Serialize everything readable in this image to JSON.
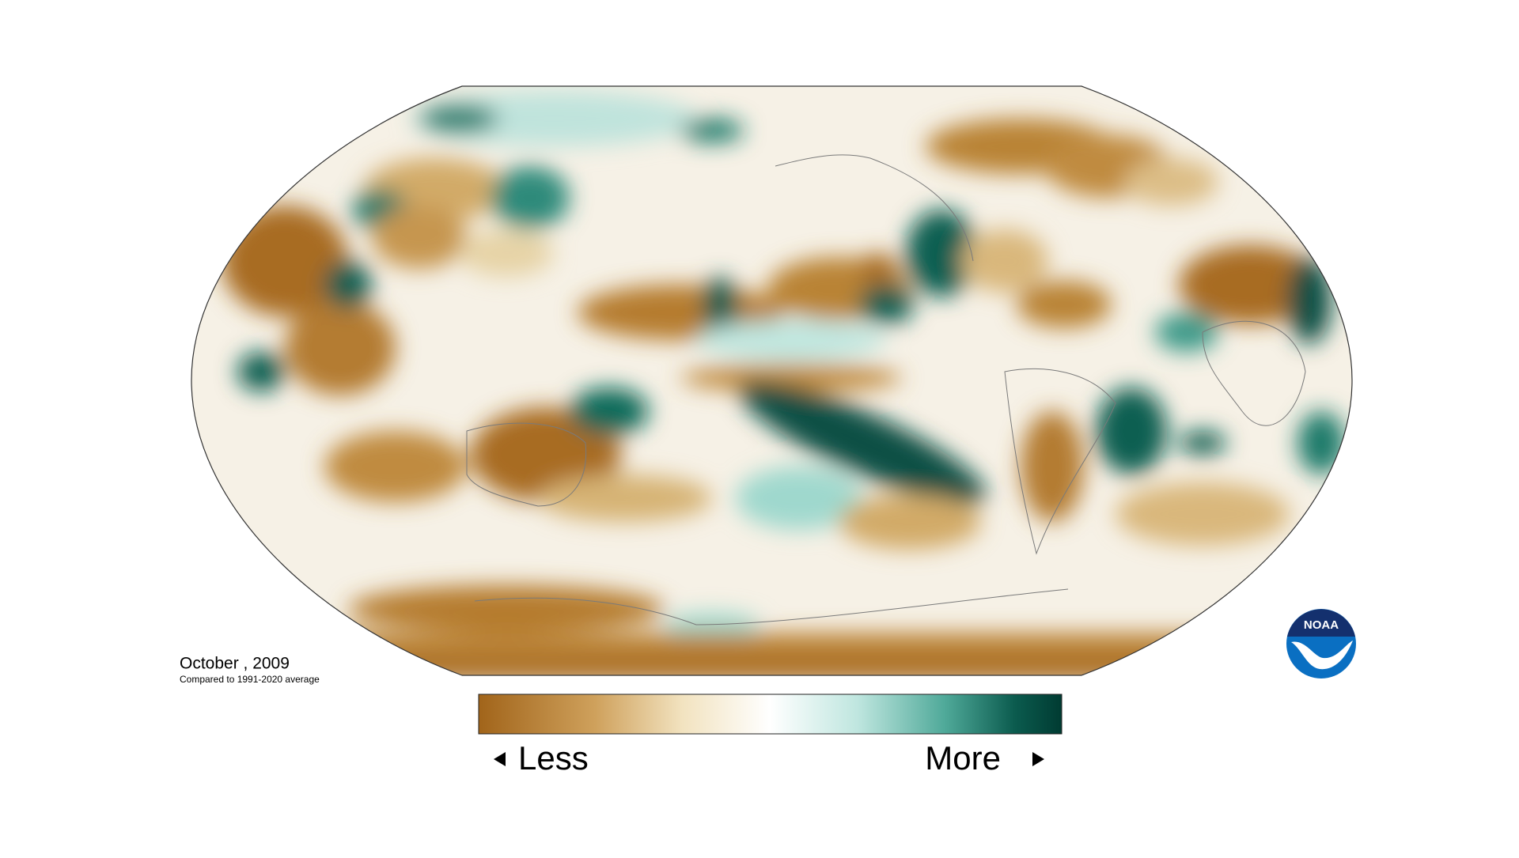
{
  "title": "October , 2009",
  "subtitle": "Compared to 1991-2020 average",
  "legend": {
    "low_label": "Less",
    "high_label": "More"
  },
  "logo": {
    "text": "NOAA"
  }
}
